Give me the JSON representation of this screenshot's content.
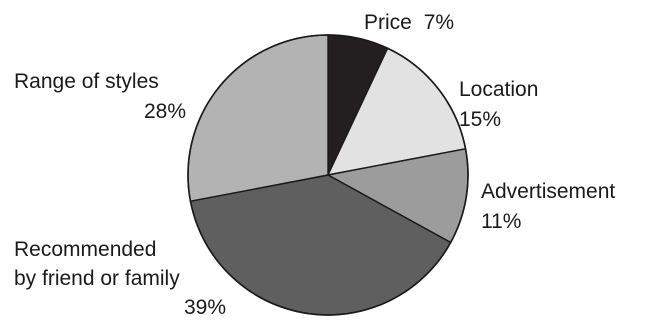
{
  "chart_data": {
    "type": "pie",
    "title": "",
    "start_angle_deg": 0,
    "direction": "clockwise",
    "slices": [
      {
        "label": "Price",
        "value": 7,
        "value_label": "7%",
        "color": "#231f20"
      },
      {
        "label": "Location",
        "value": 15,
        "value_label": "15%",
        "color": "#e2e2e2"
      },
      {
        "label": "Advertisement",
        "value": 11,
        "value_label": "11%",
        "color": "#9c9c9c"
      },
      {
        "label": "Recommended by friend or family",
        "value": 39,
        "value_label": "39%",
        "color": "#5f5f5f"
      },
      {
        "label": "Range of styles",
        "value": 28,
        "value_label": "28%",
        "color": "#b3b3b3"
      }
    ]
  }
}
